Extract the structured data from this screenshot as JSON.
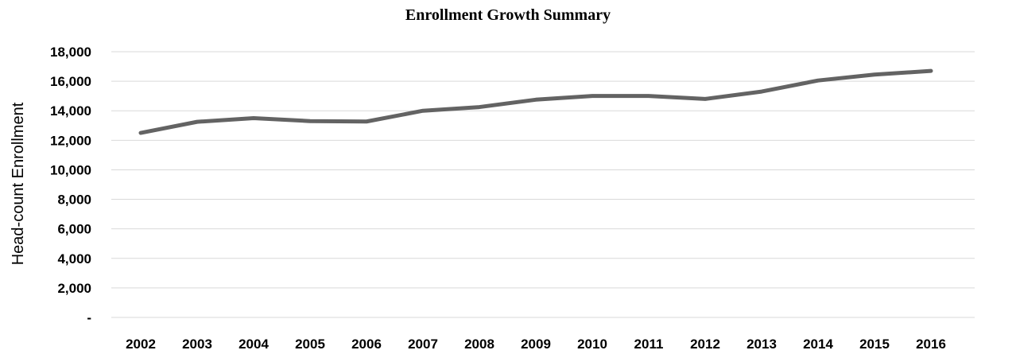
{
  "chart_data": {
    "type": "line",
    "title": "Enrollment Growth Summary",
    "xlabel": "",
    "ylabel": "Head-count Enrollment",
    "categories": [
      "2002",
      "2003",
      "2004",
      "2005",
      "2006",
      "2007",
      "2008",
      "2009",
      "2010",
      "2011",
      "2012",
      "2013",
      "2014",
      "2015",
      "2016"
    ],
    "series": [
      {
        "values": [
          12500,
          13250,
          13500,
          13300,
          13270,
          14000,
          14250,
          14750,
          15000,
          15000,
          14800,
          15300,
          16050,
          16450,
          16700
        ]
      }
    ],
    "ylim": [
      0,
      18000
    ],
    "yticks": [
      0,
      2000,
      4000,
      6000,
      8000,
      10000,
      12000,
      14000,
      16000,
      18000
    ],
    "ytick_labels": [
      "-",
      "2,000",
      "4,000",
      "6,000",
      "8,000",
      "10,000",
      "12,000",
      "14,000",
      "16,000",
      "18,000"
    ],
    "grid": true,
    "legend": "none",
    "colors": {
      "line": "#636363",
      "grid": "#d9d9d9"
    }
  }
}
